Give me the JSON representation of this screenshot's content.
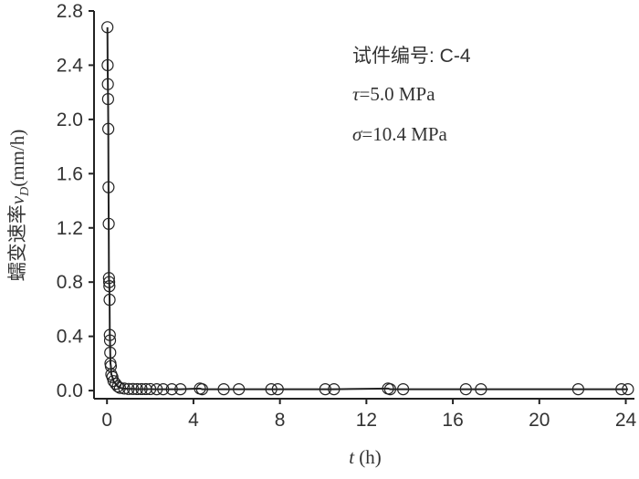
{
  "chart_data": {
    "type": "scatter",
    "x_label": {
      "symbol": "t",
      "unit": "(h)"
    },
    "y_label": {
      "text": "蠕变速率",
      "symbol": "v",
      "subscript": "D",
      "unit": "(mm/h)"
    },
    "annotations": [
      {
        "text": "试件编号: C-4"
      },
      {
        "symbol": "τ",
        "text": "=5.0 MPa"
      },
      {
        "symbol": "σ",
        "text": "=10.4 MPa"
      }
    ],
    "x": [
      0.02,
      0.03,
      0.04,
      0.05,
      0.06,
      0.07,
      0.08,
      0.09,
      0.1,
      0.11,
      0.12,
      0.13,
      0.14,
      0.15,
      0.16,
      0.18,
      0.2,
      0.25,
      0.3,
      0.4,
      0.5,
      0.6,
      0.8,
      1.0,
      1.2,
      1.4,
      1.6,
      1.8,
      2.0,
      2.3,
      2.6,
      3.0,
      3.4,
      4.3,
      4.4,
      5.4,
      6.1,
      7.6,
      7.9,
      10.1,
      10.5,
      13.0,
      13.1,
      13.7,
      16.6,
      17.3,
      21.8,
      23.8,
      24.1
    ],
    "series": [
      {
        "color": "#222222",
        "values": [
          2.68,
          2.4,
          2.26,
          2.15,
          1.93,
          1.5,
          1.23,
          0.83,
          0.8,
          0.77,
          0.67,
          0.41,
          0.37,
          0.28,
          0.2,
          0.18,
          0.12,
          0.1,
          0.07,
          0.05,
          0.03,
          0.02,
          0.015,
          0.012,
          0.012,
          0.011,
          0.011,
          0.011,
          0.011,
          0.01,
          0.01,
          0.01,
          0.01,
          0.015,
          0.01,
          0.01,
          0.01,
          0.01,
          0.01,
          0.01,
          0.01,
          0.015,
          0.01,
          0.01,
          0.01,
          0.01,
          0.01,
          0.01,
          0.01
        ]
      }
    ],
    "xlim": [
      -0.6,
      24.4
    ],
    "ylim": [
      -0.06,
      2.8
    ],
    "xticks": [
      0,
      4,
      8,
      12,
      16,
      20,
      24
    ],
    "yticks": [
      {
        "value": 0,
        "label": "0.0"
      },
      {
        "value": 0.4,
        "label": "0.4"
      },
      {
        "value": 0.8,
        "label": "0.8"
      },
      {
        "value": 1.2,
        "label": "1.2"
      },
      {
        "value": 1.6,
        "label": "1.6"
      },
      {
        "value": 2.0,
        "label": "2.0"
      },
      {
        "value": 2.4,
        "label": "2.4"
      },
      {
        "value": 2.8,
        "label": "2.8"
      }
    ]
  }
}
